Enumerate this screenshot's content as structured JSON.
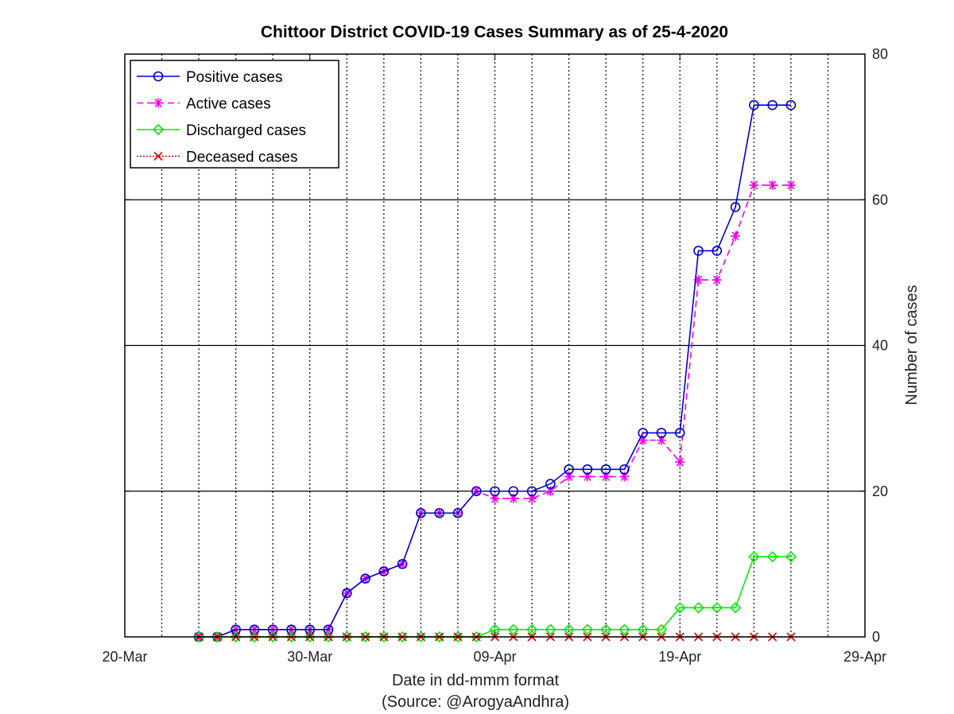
{
  "chart_data": {
    "type": "line",
    "title": "Chittoor District COVID-19 Cases Summary as of 25-4-2020",
    "xlabel": "Date in dd-mmm format",
    "xlabel2": "(Source: @ArogyaAndhra)",
    "ylabel": "Number of cases",
    "x_tick_labels": [
      "20-Mar",
      "30-Mar",
      "09-Apr",
      "19-Apr",
      "29-Apr"
    ],
    "y_tick_labels": [
      "0",
      "20",
      "40",
      "60",
      "80"
    ],
    "xlim": [
      "2020-03-20",
      "2020-04-29"
    ],
    "ylim": [
      0,
      80
    ],
    "y_axis_position": "right",
    "grid": "vertical dotted daily, horizontal solid at 20s",
    "legend_position": "top-left",
    "x": [
      "2020-03-24",
      "2020-03-25",
      "2020-03-26",
      "2020-03-27",
      "2020-03-28",
      "2020-03-29",
      "2020-03-30",
      "2020-03-31",
      "2020-04-01",
      "2020-04-02",
      "2020-04-03",
      "2020-04-04",
      "2020-04-05",
      "2020-04-06",
      "2020-04-07",
      "2020-04-08",
      "2020-04-09",
      "2020-04-10",
      "2020-04-11",
      "2020-04-12",
      "2020-04-13",
      "2020-04-14",
      "2020-04-15",
      "2020-04-16",
      "2020-04-17",
      "2020-04-18",
      "2020-04-19",
      "2020-04-20",
      "2020-04-21",
      "2020-04-22",
      "2020-04-23",
      "2020-04-24",
      "2020-04-25"
    ],
    "series": [
      {
        "name": "Positive cases",
        "color": "#0000cc",
        "marker": "circle",
        "dash": "solid",
        "values": [
          0,
          0,
          1,
          1,
          1,
          1,
          1,
          1,
          6,
          8,
          9,
          10,
          17,
          17,
          17,
          20,
          20,
          20,
          20,
          21,
          23,
          23,
          23,
          23,
          28,
          28,
          28,
          53,
          53,
          59,
          73,
          73,
          73
        ]
      },
      {
        "name": "Active cases",
        "color": "#ee00ee",
        "marker": "asterisk",
        "dash": "dashed",
        "values": [
          0,
          0,
          1,
          1,
          1,
          1,
          1,
          1,
          6,
          8,
          9,
          10,
          17,
          17,
          17,
          20,
          19,
          19,
          19,
          20,
          22,
          22,
          22,
          22,
          27,
          27,
          24,
          49,
          49,
          55,
          62,
          62,
          62
        ]
      },
      {
        "name": "Discharged cases",
        "color": "#00ee00",
        "marker": "diamond",
        "dash": "solid",
        "values": [
          0,
          0,
          0,
          0,
          0,
          0,
          0,
          0,
          0,
          0,
          0,
          0,
          0,
          0,
          0,
          0,
          1,
          1,
          1,
          1,
          1,
          1,
          1,
          1,
          1,
          1,
          4,
          4,
          4,
          4,
          11,
          11,
          11
        ]
      },
      {
        "name": "Deceased cases",
        "color": "#dd0000",
        "marker": "x",
        "dash": "dotted",
        "values": [
          0,
          0,
          0,
          0,
          0,
          0,
          0,
          0,
          0,
          0,
          0,
          0,
          0,
          0,
          0,
          0,
          0,
          0,
          0,
          0,
          0,
          0,
          0,
          0,
          0,
          0,
          0,
          0,
          0,
          0,
          0,
          0,
          0
        ]
      }
    ]
  }
}
